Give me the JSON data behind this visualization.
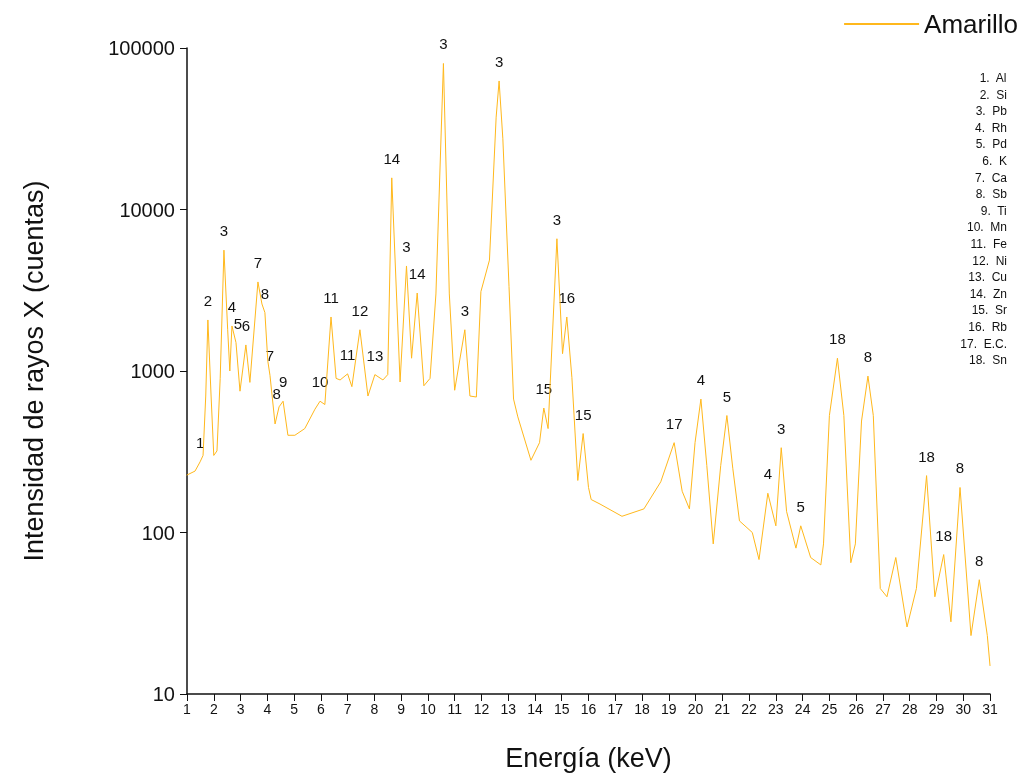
{
  "chart_data": {
    "type": "line",
    "xlabel": "Energía (keV)",
    "ylabel": "Intensidad de rayos X (cuentas)",
    "log": "y",
    "grid": false,
    "legend": "top right",
    "marker": "none",
    "line_style": "solid",
    "xlim": [
      1,
      31
    ],
    "xticks": [
      1,
      2,
      3,
      4,
      5,
      6,
      7,
      8,
      9,
      10,
      11,
      12,
      13,
      14,
      15,
      16,
      17,
      18,
      19,
      20,
      21,
      22,
      23,
      24,
      25,
      26,
      27,
      28,
      29,
      30,
      31
    ],
    "ylim": [
      10,
      100000
    ],
    "yticks": [
      10,
      100,
      1000,
      10000,
      100000
    ],
    "series": [
      {
        "name": "Amarillo",
        "color": "#ffb81c",
        "x": [
          1,
          1.3,
          1.49,
          1.6,
          1.7,
          1.78,
          1.9,
          2.0,
          2.12,
          2.24,
          2.38,
          2.52,
          2.6,
          2.68,
          2.83,
          2.98,
          3.2,
          3.35,
          3.65,
          3.8,
          3.91,
          4.02,
          4.1,
          4.29,
          4.44,
          4.59,
          4.77,
          5.03,
          5.4,
          5.78,
          5.97,
          6.15,
          6.38,
          6.57,
          6.72,
          7.0,
          7.16,
          7.46,
          7.76,
          8.02,
          8.32,
          8.5,
          8.65,
          8.96,
          9.2,
          9.39,
          9.6,
          9.85,
          10.08,
          10.3,
          10.58,
          10.8,
          11.0,
          11.38,
          11.57,
          11.81,
          11.98,
          12.3,
          12.55,
          12.66,
          12.8,
          13.03,
          13.2,
          13.36,
          13.85,
          14.17,
          14.33,
          14.49,
          14.82,
          15.03,
          15.19,
          15.38,
          15.6,
          15.8,
          16.0,
          16.1,
          16.43,
          17.25,
          18.07,
          18.7,
          19.2,
          19.5,
          19.77,
          19.98,
          20.2,
          20.42,
          20.66,
          20.94,
          21.17,
          21.39,
          21.64,
          22.12,
          22.37,
          22.7,
          23.0,
          23.2,
          23.4,
          23.75,
          23.93,
          24.3,
          24.68,
          24.78,
          25.0,
          25.3,
          25.54,
          25.8,
          25.97,
          26.2,
          26.44,
          26.64,
          26.9,
          27.15,
          27.48,
          27.9,
          28.25,
          28.63,
          28.94,
          29.27,
          29.54,
          29.88,
          30.29,
          30.6,
          30.9,
          31
        ],
        "values": [
          227,
          240,
          274,
          300,
          700,
          2070,
          700,
          300,
          320,
          900,
          5600,
          1800,
          1000,
          1900,
          1500,
          750,
          1450,
          850,
          3560,
          2600,
          2300,
          1150,
          940,
          470,
          600,
          650,
          400,
          400,
          440,
          580,
          650,
          620,
          2160,
          900,
          880,
          960,
          800,
          1800,
          700,
          950,
          880,
          950,
          15700,
          855,
          4470,
          1200,
          3040,
          810,
          900,
          3000,
          80200,
          3000,
          760,
          1800,
          700,
          690,
          3100,
          4860,
          37300,
          62500,
          27400,
          3340,
          670,
          520,
          280,
          360,
          590,
          440,
          6590,
          1280,
          2160,
          910,
          210,
          410,
          190,
          160,
          150,
          126,
          140,
          206,
          360,
          180,
          140,
          360,
          670,
          260,
          85,
          260,
          530,
          250,
          118,
          100,
          68,
          175,
          110,
          335,
          135,
          80,
          110,
          70,
          63,
          85,
          530,
          1200,
          530,
          65,
          85,
          490,
          930,
          530,
          45,
          40,
          70,
          26,
          45,
          225,
          40,
          73,
          28,
          190,
          23,
          51,
          23,
          15
        ]
      }
    ],
    "annotations": [
      {
        "text": "1",
        "x": 1.49,
        "y": 274
      },
      {
        "text": "2",
        "x": 1.78,
        "y": 2070
      },
      {
        "text": "3",
        "x": 2.38,
        "y": 5600
      },
      {
        "text": "4",
        "x": 2.68,
        "y": 1900
      },
      {
        "text": "5",
        "x": 2.9,
        "y": 1500
      },
      {
        "text": "6",
        "x": 3.2,
        "y": 1450
      },
      {
        "text": "7",
        "x": 3.65,
        "y": 3560
      },
      {
        "text": "8",
        "x": 3.91,
        "y": 2300
      },
      {
        "text": "7",
        "x": 4.1,
        "y": 940
      },
      {
        "text": "8",
        "x": 4.35,
        "y": 550
      },
      {
        "text": "9",
        "x": 4.59,
        "y": 650
      },
      {
        "text": "10",
        "x": 5.97,
        "y": 650
      },
      {
        "text": "11",
        "x": 6.38,
        "y": 2160
      },
      {
        "text": "11",
        "x": 7.0,
        "y": 960
      },
      {
        "text": "12",
        "x": 7.46,
        "y": 1800
      },
      {
        "text": "13",
        "x": 8.02,
        "y": 950
      },
      {
        "text": "14",
        "x": 8.65,
        "y": 15700
      },
      {
        "text": "3",
        "x": 9.2,
        "y": 4470
      },
      {
        "text": "14",
        "x": 9.6,
        "y": 3040
      },
      {
        "text": "3",
        "x": 10.58,
        "y": 80200
      },
      {
        "text": "3",
        "x": 11.38,
        "y": 1800
      },
      {
        "text": "3",
        "x": 12.66,
        "y": 62500
      },
      {
        "text": "15",
        "x": 14.33,
        "y": 590
      },
      {
        "text": "3",
        "x": 14.82,
        "y": 6590
      },
      {
        "text": "16",
        "x": 15.19,
        "y": 2160
      },
      {
        "text": "15",
        "x": 15.8,
        "y": 410
      },
      {
        "text": "17",
        "x": 19.2,
        "y": 360
      },
      {
        "text": "4",
        "x": 20.2,
        "y": 670
      },
      {
        "text": "5",
        "x": 21.17,
        "y": 530
      },
      {
        "text": "4",
        "x": 22.7,
        "y": 175
      },
      {
        "text": "3",
        "x": 23.2,
        "y": 335
      },
      {
        "text": "5",
        "x": 23.93,
        "y": 110
      },
      {
        "text": "18",
        "x": 25.3,
        "y": 1200
      },
      {
        "text": "8",
        "x": 26.44,
        "y": 930
      },
      {
        "text": "18",
        "x": 28.63,
        "y": 225
      },
      {
        "text": "18",
        "x": 29.27,
        "y": 73
      },
      {
        "text": "8",
        "x": 29.88,
        "y": 190
      },
      {
        "text": "8",
        "x": 30.6,
        "y": 51
      },
      "1.  Al",
      "2.  Si",
      "3.  Pb",
      "4.  Rh",
      "5.  Pd",
      "6.  K",
      "7.  Ca",
      "8.  Sb",
      "9.  Ti",
      "10.  Mn",
      "11.  Fe",
      "12.  Ni",
      "13.  Cu",
      "14.  Zn",
      "15.  Sr",
      "16.  Rb",
      "17.  E.C.",
      "18.  Sn"
    ]
  }
}
